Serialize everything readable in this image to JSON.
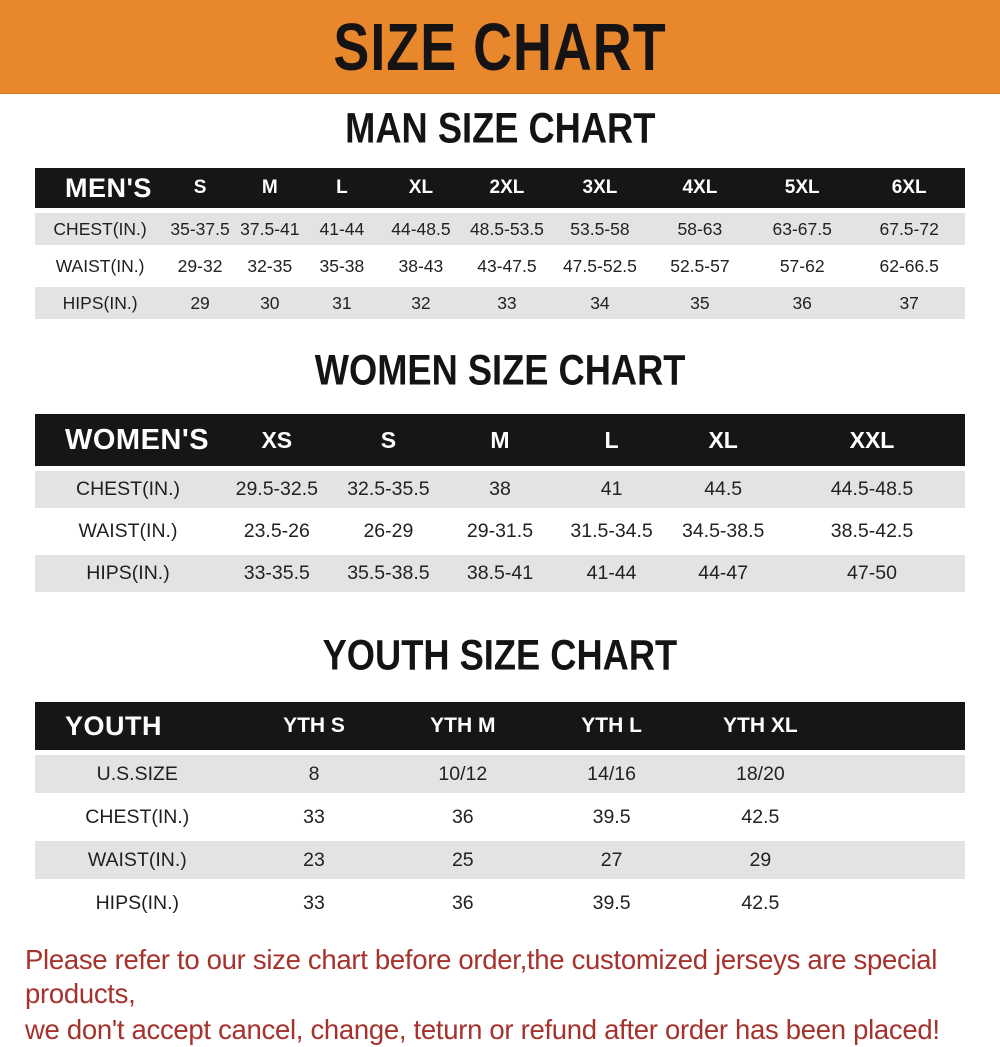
{
  "banner": {
    "title": "SIZE CHART",
    "bg_color": "#E8872C",
    "text_color": "#151313"
  },
  "tables": [
    {
      "id": "men",
      "title": "MAN SIZE CHART",
      "header_label": "MEN'S",
      "columns": [
        "S",
        "M",
        "L",
        "XL",
        "2XL",
        "3XL",
        "4XL",
        "5XL",
        "6XL"
      ],
      "rows": [
        {
          "label": "CHEST(IN.)",
          "values": [
            "35-37.5",
            "37.5-41",
            "41-44",
            "44-48.5",
            "48.5-53.5",
            "53.5-58",
            "58-63",
            "63-67.5",
            "67.5-72"
          ]
        },
        {
          "label": "WAIST(IN.)",
          "values": [
            "29-32",
            "32-35",
            "35-38",
            "38-43",
            "43-47.5",
            "47.5-52.5",
            "52.5-57",
            "57-62",
            "62-66.5"
          ]
        },
        {
          "label": "HIPS(IN.)",
          "values": [
            "29",
            "30",
            "31",
            "32",
            "33",
            "34",
            "35",
            "36",
            "37"
          ]
        }
      ]
    },
    {
      "id": "women",
      "title": "WOMEN SIZE CHART",
      "header_label": "WOMEN'S",
      "columns": [
        "XS",
        "S",
        "M",
        "L",
        "XL",
        "XXL"
      ],
      "rows": [
        {
          "label": "CHEST(IN.)",
          "values": [
            "29.5-32.5",
            "32.5-35.5",
            "38",
            "41",
            "44.5",
            "44.5-48.5"
          ]
        },
        {
          "label": "WAIST(IN.)",
          "values": [
            "23.5-26",
            "26-29",
            "29-31.5",
            "31.5-34.5",
            "34.5-38.5",
            "38.5-42.5"
          ]
        },
        {
          "label": "HIPS(IN.)",
          "values": [
            "33-35.5",
            "35.5-38.5",
            "38.5-41",
            "41-44",
            "44-47",
            "47-50"
          ]
        }
      ]
    },
    {
      "id": "youth",
      "title": "YOUTH SIZE CHART",
      "header_label": "YOUTH",
      "columns": [
        "YTH S",
        "YTH M",
        "YTH L",
        "YTH XL"
      ],
      "rows": [
        {
          "label": "U.S.SIZE",
          "values": [
            "8",
            "10/12",
            "14/16",
            "18/20"
          ]
        },
        {
          "label": "CHEST(IN.)",
          "values": [
            "33",
            "36",
            "39.5",
            "42.5"
          ]
        },
        {
          "label": "WAIST(IN.)",
          "values": [
            "23",
            "25",
            "27",
            "29"
          ]
        },
        {
          "label": "HIPS(IN.)",
          "values": [
            "33",
            "36",
            "39.5",
            "42.5"
          ]
        }
      ]
    }
  ],
  "footer": {
    "line1": "Please refer to our size chart before order,the customized jerseys are special products,",
    "line2": "we don't accept cancel, change, teturn or refund after order has been placed!",
    "text_color": "#A5322C"
  },
  "colors": {
    "banner_orange": "#E8872C",
    "header_bar_black": "#171515",
    "row_stripe_gray": "#E3E3E3",
    "row_plain_white": "#FFFFFF",
    "notice_red": "#A5322C"
  }
}
